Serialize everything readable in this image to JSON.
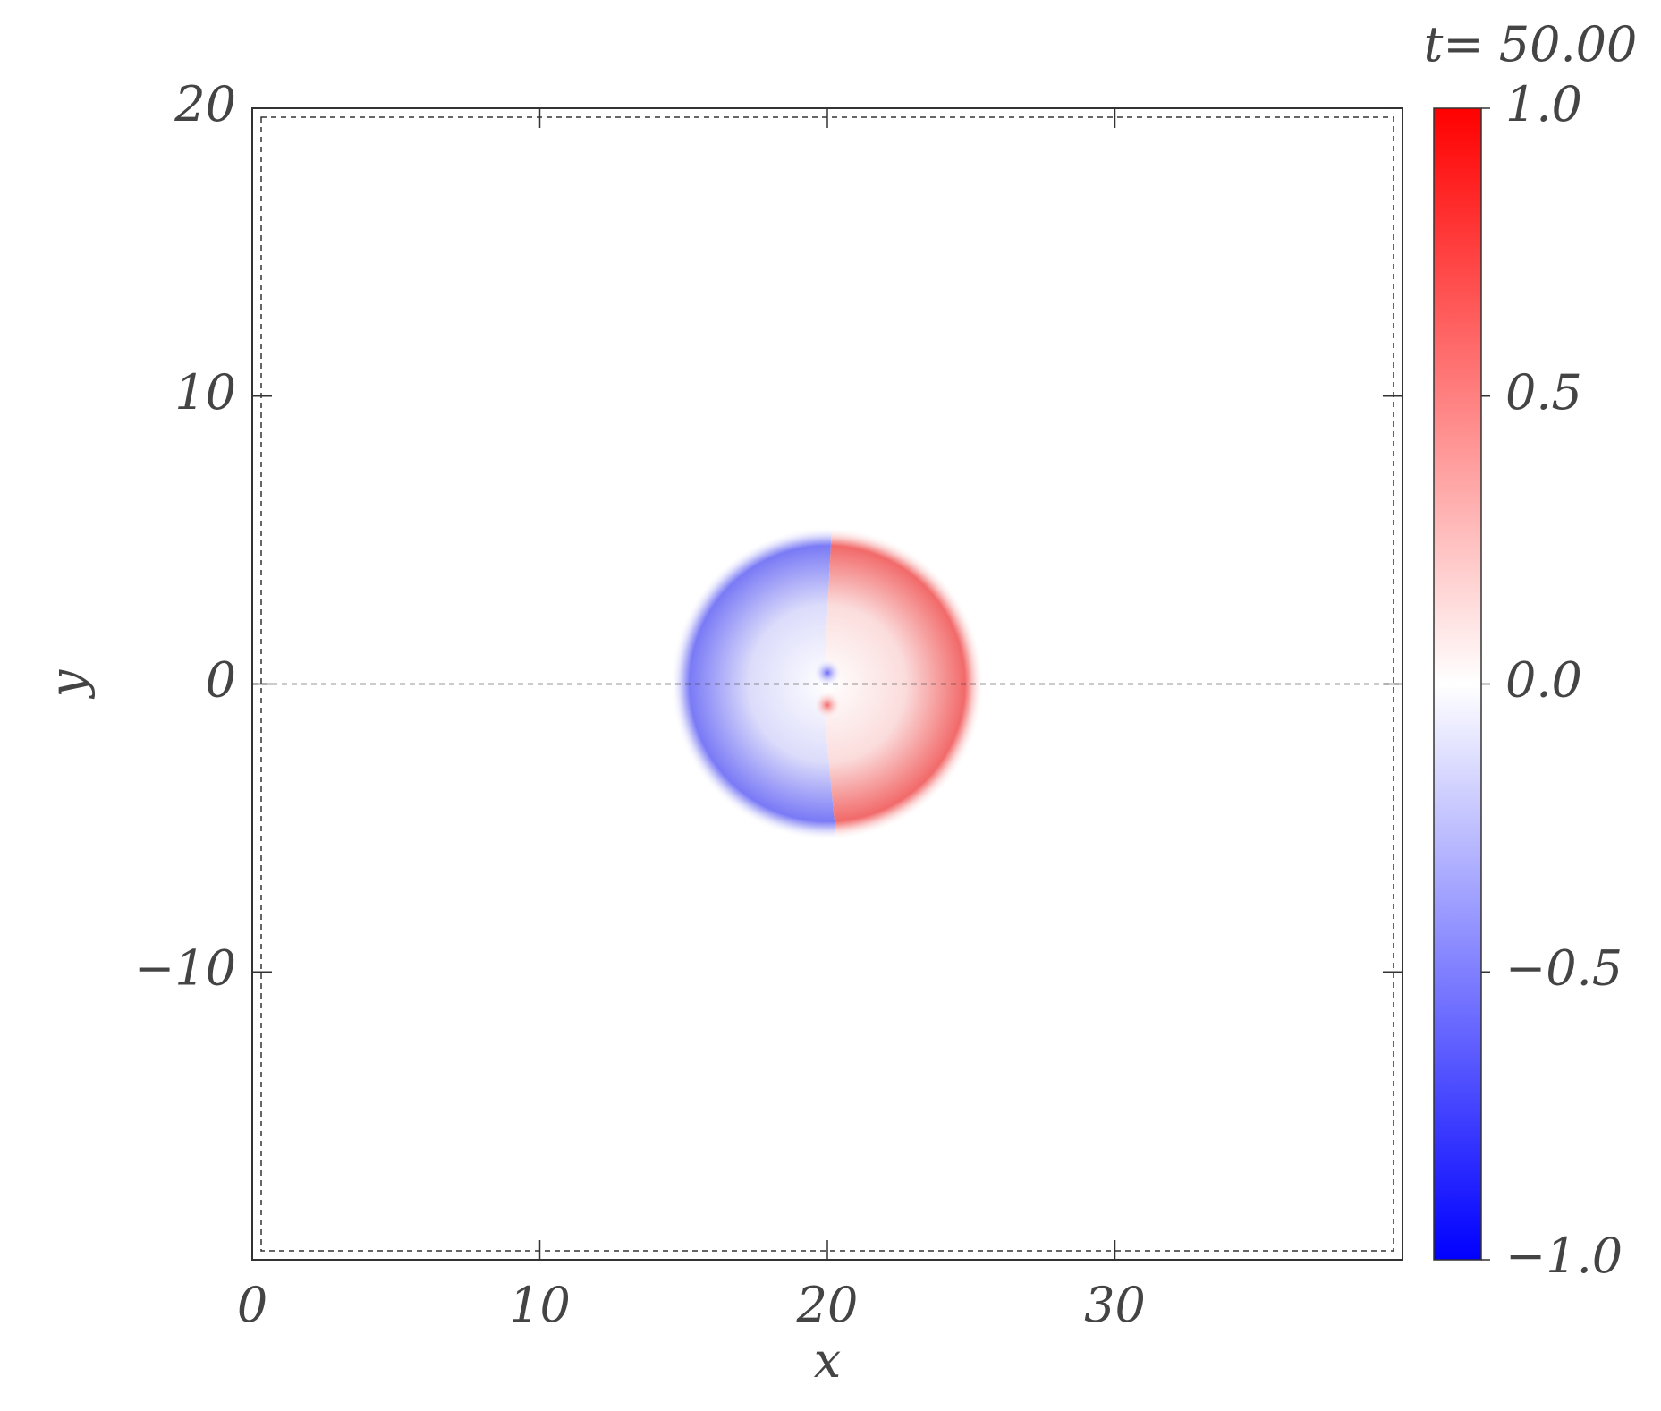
{
  "chart_data": {
    "type": "heatmap",
    "title": "t= 50.00",
    "x_label": "x",
    "y_label": "y",
    "xlim": [
      0,
      40
    ],
    "ylim": [
      -20,
      20
    ],
    "xticks": [
      0,
      10,
      20,
      30
    ],
    "yticks": [
      {
        "value": -10,
        "label": "−10"
      },
      0,
      10,
      20
    ],
    "colormap": [
      "#0000ff",
      "#ffffff",
      "#ff0000"
    ],
    "clim": [
      -1,
      1
    ],
    "cticks": [
      {
        "value": -1,
        "label": "−1.0"
      },
      {
        "value": -0.5,
        "label": "−0.5"
      },
      {
        "value": 0,
        "label": "0.0"
      },
      {
        "value": 0.5,
        "label": "0.5"
      },
      {
        "value": 1,
        "label": "1.0"
      }
    ]
  }
}
